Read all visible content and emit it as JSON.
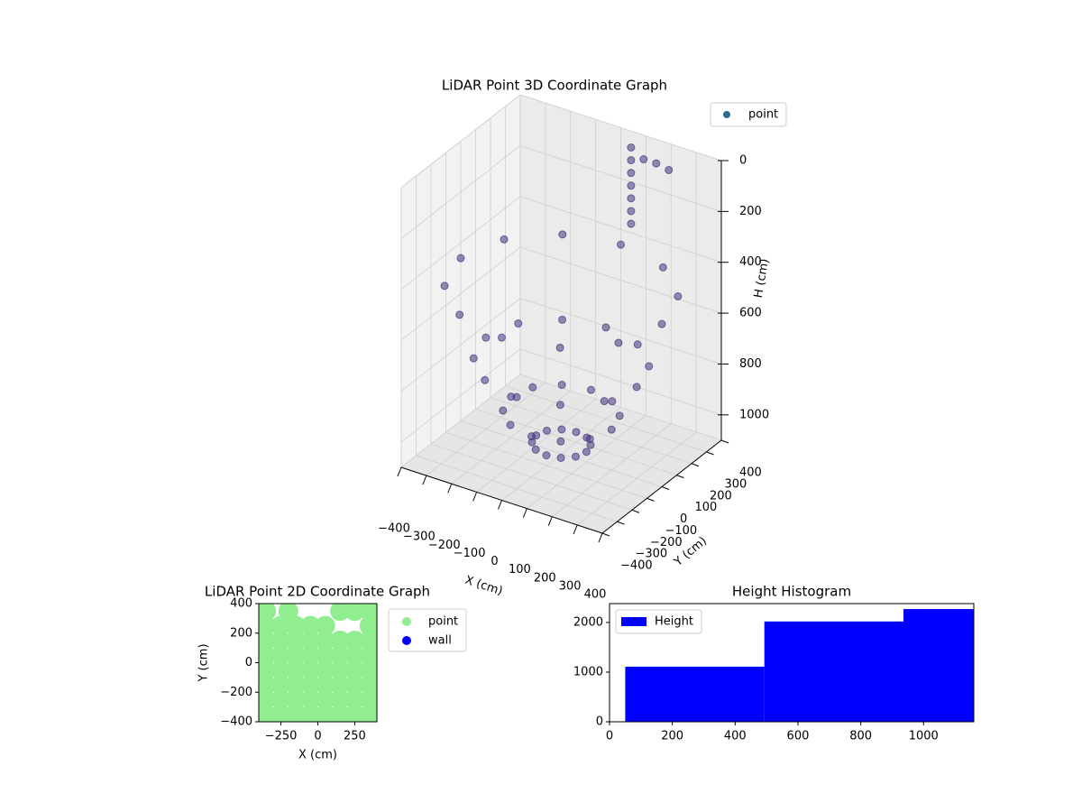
{
  "chart_data": [
    {
      "type": "scatter3d",
      "title": "LiDAR Point 3D Coordinate Graph",
      "xlabel": "X (cm)",
      "ylabel": "Y (cm)",
      "zlabel": "H (cm)",
      "xlim": [
        -400,
        400
      ],
      "ylim": [
        -400,
        400
      ],
      "zlim": [
        0,
        1100
      ],
      "invert_z": true,
      "grid": true,
      "legend_loc": "upper right",
      "xticks": [
        {
          "value": -400,
          "label": "−400"
        },
        {
          "value": -300,
          "label": "−300"
        },
        {
          "value": -200,
          "label": "−200"
        },
        {
          "value": -100,
          "label": "−100"
        },
        0,
        100,
        200,
        300,
        400
      ],
      "yticks": [
        {
          "value": -400,
          "label": "−400"
        },
        {
          "value": -300,
          "label": "−300"
        },
        {
          "value": -200,
          "label": "−200"
        },
        {
          "value": -100,
          "label": "−100"
        },
        0,
        100,
        200,
        300,
        400
      ],
      "zticks": [
        0,
        200,
        400,
        600,
        800,
        1000
      ],
      "series": [
        {
          "name": "point",
          "color": "#46337e",
          "legend_color": "#2c6b8e",
          "x": [
            100,
            87,
            50,
            0,
            -50,
            -87,
            -100,
            -87,
            -50,
            0,
            50,
            87,
            200,
            173,
            100,
            0,
            -100,
            -173,
            -200,
            -173,
            -100,
            0,
            100,
            173,
            300,
            260,
            150,
            0,
            -150,
            -260,
            -300,
            -260,
            -150,
            0,
            150,
            260,
            400,
            346,
            200,
            0,
            -200,
            -346,
            -400,
            -346,
            -200,
            0,
            200,
            346,
            100,
            100,
            100,
            100,
            100,
            100,
            100,
            150,
            200,
            250
          ],
          "y": [
            0,
            50,
            87,
            100,
            87,
            50,
            0,
            -50,
            -87,
            -100,
            -87,
            -50,
            0,
            100,
            173,
            200,
            173,
            100,
            0,
            -100,
            -173,
            -200,
            -173,
            -100,
            0,
            150,
            260,
            300,
            260,
            150,
            0,
            -150,
            -260,
            -300,
            -260,
            -150,
            0,
            200,
            346,
            400,
            346,
            200,
            0,
            -200,
            -346,
            -400,
            -346,
            -200,
            300,
            300,
            300,
            300,
            300,
            300,
            300,
            300,
            300,
            300
          ],
          "z": [
            1060,
            1060,
            1060,
            1060,
            1060,
            1060,
            1060,
            1060,
            1060,
            1060,
            1060,
            1060,
            940,
            940,
            940,
            940,
            940,
            940,
            940,
            940,
            940,
            940,
            940,
            940,
            740,
            740,
            740,
            740,
            740,
            740,
            740,
            740,
            740,
            740,
            740,
            740,
            460,
            460,
            460,
            460,
            460,
            460,
            460,
            460,
            460,
            460,
            460,
            460,
            0,
            50,
            100,
            150,
            200,
            250,
            300,
            30,
            30,
            40
          ]
        }
      ]
    },
    {
      "type": "scatter",
      "title": "LiDAR Point 2D Coordinate Graph",
      "xlabel": "X (cm)",
      "ylabel": "Y (cm)",
      "xlim": [
        -400,
        400
      ],
      "ylim": [
        -400,
        400
      ],
      "legend_loc": "outside upper right",
      "xticks": [
        {
          "value": -250,
          "label": "−250"
        },
        0,
        250
      ],
      "yticks": [
        {
          "value": -400,
          "label": "−400"
        },
        {
          "value": -200,
          "label": "−200"
        },
        0,
        200,
        400
      ],
      "series": [
        {
          "name": "point",
          "color": "#90ee90",
          "x": [
            -350,
            -250,
            -150,
            -50,
            50,
            150,
            250,
            350,
            -350,
            -250,
            -150,
            -50,
            50,
            150,
            250,
            350,
            -350,
            -250,
            -150,
            -50,
            50,
            150,
            250,
            350,
            -350,
            -250,
            -150,
            -50,
            50,
            150,
            250,
            350,
            -350,
            -250,
            -150,
            -50,
            50,
            150,
            250,
            350,
            -350,
            -250,
            -150,
            -50,
            50,
            150,
            250,
            350,
            -350,
            -250,
            -150,
            -50,
            50,
            350,
            -350,
            -200,
            150,
            250,
            350
          ],
          "y": [
            -350,
            -350,
            -350,
            -350,
            -350,
            -350,
            -350,
            -350,
            -250,
            -250,
            -250,
            -250,
            -250,
            -250,
            -250,
            -250,
            -150,
            -150,
            -150,
            -150,
            -150,
            -150,
            -150,
            -150,
            -50,
            -50,
            -50,
            -50,
            -50,
            -50,
            -50,
            -50,
            50,
            50,
            50,
            50,
            50,
            50,
            50,
            50,
            150,
            150,
            150,
            150,
            150,
            150,
            150,
            150,
            250,
            250,
            250,
            250,
            250,
            250,
            350,
            350,
            350,
            350,
            350
          ]
        },
        {
          "name": "wall",
          "color": "#0000ff",
          "x": [],
          "y": []
        }
      ]
    },
    {
      "type": "histogram",
      "title": "Height Histogram",
      "bins": [
        50,
        493,
        936,
        1379
      ],
      "xlim": [
        0,
        1160
      ],
      "ylim": [
        0,
        2380
      ],
      "xticks": [
        0,
        200,
        400,
        600,
        800,
        1000
      ],
      "yticks": [
        0,
        1000,
        2000
      ],
      "legend_loc": "upper left",
      "series": [
        {
          "name": "Height",
          "color": "#0000ff",
          "values": [
            1110,
            2020,
            2270
          ]
        }
      ]
    }
  ]
}
